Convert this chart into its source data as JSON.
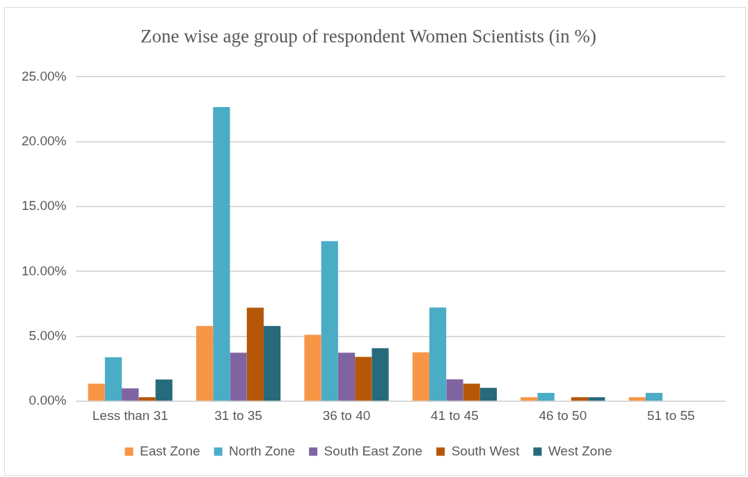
{
  "chart_data": {
    "type": "bar",
    "title": "Zone wise age group of respondent Women Scientists (in %)",
    "categories": [
      "Less than 31",
      "31 to 35",
      "36 to 40",
      "41 to 45",
      "46 to 50",
      "51 to 55"
    ],
    "series": [
      {
        "name": "East Zone",
        "color": "#f79646",
        "values": [
          1.36,
          5.81,
          5.13,
          3.77,
          0.32,
          0.32
        ]
      },
      {
        "name": "North Zone",
        "color": "#4bacc6",
        "values": [
          3.4,
          22.66,
          12.34,
          7.23,
          0.66,
          0.66
        ]
      },
      {
        "name": "South East Zone",
        "color": "#8064a2",
        "values": [
          1.0,
          3.75,
          3.75,
          1.7,
          0,
          0
        ]
      },
      {
        "name": "South West",
        "color": "#b65708",
        "values": [
          0.32,
          7.21,
          3.43,
          1.36,
          0.32,
          0
        ]
      },
      {
        "name": "West Zone",
        "color": "#276a7c",
        "values": [
          1.68,
          5.81,
          4.09,
          1.04,
          0.32,
          0
        ]
      }
    ],
    "ylim": [
      0,
      25
    ],
    "yticks": [
      {
        "value": 0,
        "label": "0.00%"
      },
      {
        "value": 5,
        "label": "5.00%"
      },
      {
        "value": 10,
        "label": "10.00%"
      },
      {
        "value": 15,
        "label": "15.00%"
      },
      {
        "value": 20,
        "label": "20.00%"
      },
      {
        "value": 25,
        "label": "25.00%"
      }
    ],
    "grid": "y",
    "legend": "bottom"
  }
}
